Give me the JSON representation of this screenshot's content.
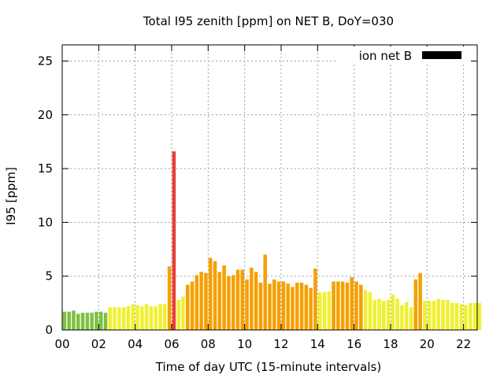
{
  "chart_data": {
    "type": "bar",
    "title": "Total I95 zenith [ppm] on NET B, DoY=030",
    "xlabel": "Time of day UTC (15-minute intervals)",
    "ylabel": "I95 [ppm]",
    "xlim": [
      0,
      22.75
    ],
    "ylim": [
      0,
      26.5
    ],
    "x_ticks": [
      "00",
      "02",
      "04",
      "06",
      "08",
      "10",
      "12",
      "14",
      "16",
      "18",
      "20",
      "22"
    ],
    "y_ticks": [
      "0",
      "5",
      "10",
      "15",
      "20",
      "25"
    ],
    "grid": true,
    "legend": {
      "position": "top-right",
      "entries": [
        {
          "name": "ion net B",
          "color": "#000000"
        }
      ]
    },
    "colors": {
      "green": "#7dc142",
      "yellow": "#f0f032",
      "orange": "#f5a000",
      "red": "#e8403a"
    },
    "bar_step_hours": 0.25,
    "values": [
      1.7,
      1.7,
      1.8,
      1.5,
      1.6,
      1.6,
      1.6,
      1.7,
      1.7,
      1.6,
      2.1,
      2.1,
      2.1,
      2.1,
      2.2,
      2.4,
      2.3,
      2.2,
      2.4,
      2.2,
      2.2,
      2.4,
      2.4,
      5.9,
      16.6,
      2.8,
      3.1,
      4.2,
      4.5,
      5.1,
      5.4,
      5.3,
      6.7,
      6.4,
      5.4,
      6.0,
      5.0,
      5.1,
      5.6,
      5.6,
      4.7,
      5.8,
      5.4,
      4.4,
      7.0,
      4.3,
      4.7,
      4.5,
      4.5,
      4.3,
      4.0,
      4.4,
      4.4,
      4.2,
      3.9,
      5.7,
      3.5,
      3.5,
      3.6,
      4.5,
      4.5,
      4.5,
      4.4,
      4.9,
      4.5,
      4.2,
      3.7,
      3.5,
      2.8,
      2.9,
      2.7,
      2.8,
      3.3,
      2.9,
      2.3,
      2.6,
      2.1,
      4.7,
      5.3,
      2.7,
      2.7,
      2.7,
      2.9,
      2.8,
      2.8,
      2.5,
      2.5,
      2.4,
      2.3,
      2.5,
      2.5,
      2.5
    ],
    "bar_colors": [
      "green",
      "green",
      "green",
      "green",
      "green",
      "green",
      "green",
      "green",
      "green",
      "green",
      "yellow",
      "yellow",
      "yellow",
      "yellow",
      "yellow",
      "yellow",
      "yellow",
      "yellow",
      "yellow",
      "yellow",
      "yellow",
      "yellow",
      "yellow",
      "orange",
      "red",
      "yellow",
      "yellow",
      "orange",
      "orange",
      "orange",
      "orange",
      "orange",
      "orange",
      "orange",
      "orange",
      "orange",
      "orange",
      "orange",
      "orange",
      "orange",
      "orange",
      "orange",
      "orange",
      "orange",
      "orange",
      "orange",
      "orange",
      "orange",
      "orange",
      "orange",
      "orange",
      "orange",
      "orange",
      "orange",
      "orange",
      "orange",
      "yellow",
      "yellow",
      "yellow",
      "orange",
      "orange",
      "orange",
      "orange",
      "orange",
      "orange",
      "orange",
      "yellow",
      "yellow",
      "yellow",
      "yellow",
      "yellow",
      "yellow",
      "yellow",
      "yellow",
      "yellow",
      "yellow",
      "yellow",
      "orange",
      "orange",
      "yellow",
      "yellow",
      "yellow",
      "yellow",
      "yellow",
      "yellow",
      "yellow",
      "yellow",
      "yellow",
      "yellow",
      "yellow",
      "yellow",
      "yellow"
    ]
  }
}
